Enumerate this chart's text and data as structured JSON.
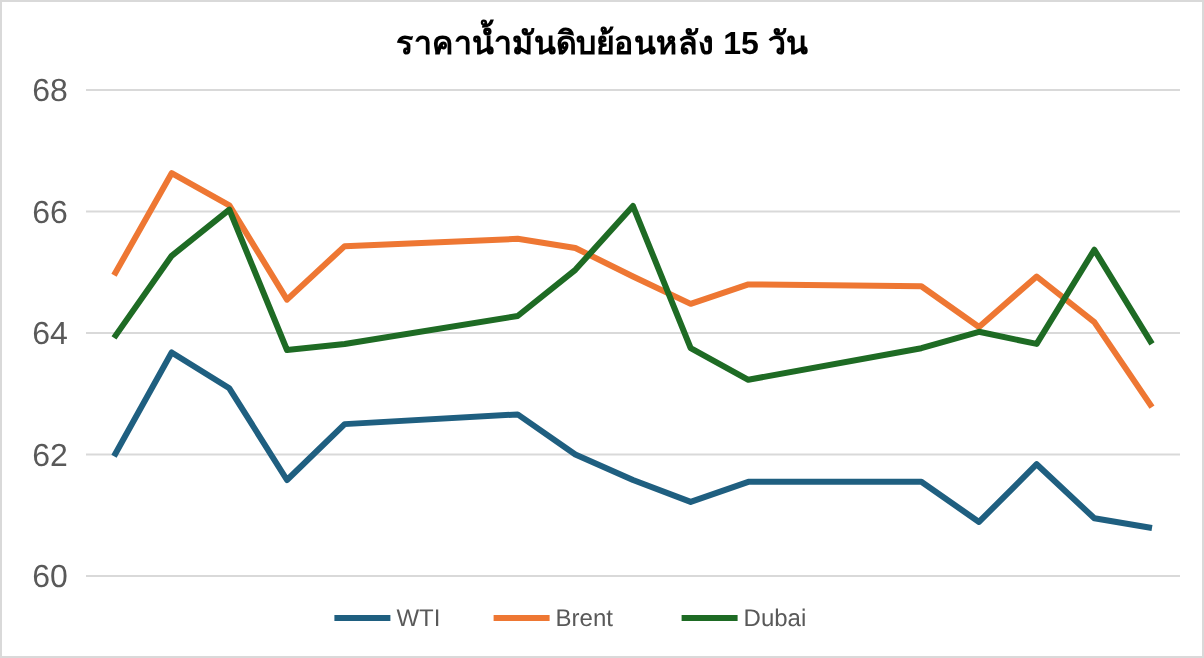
{
  "chart_data": {
    "type": "line",
    "title": "ราคาน้ำมันดิบย้อนหลัง 15 วัน",
    "categories": [
      null,
      null,
      null,
      null,
      null,
      null,
      null,
      null,
      null,
      null,
      null,
      null,
      null,
      null,
      null,
      null,
      null,
      null,
      null
    ],
    "series": [
      {
        "name": "WTI",
        "color": "#1f5f80",
        "values": [
          61.97,
          63.68,
          63.09,
          61.58,
          62.5,
          null,
          null,
          62.66,
          62.0,
          61.58,
          61.22,
          61.55,
          null,
          null,
          61.55,
          60.89,
          61.84,
          60.95,
          60.79
        ]
      },
      {
        "name": "Brent",
        "color": "#ee7733",
        "values": [
          64.95,
          66.63,
          66.1,
          64.55,
          65.43,
          null,
          null,
          65.55,
          65.4,
          64.93,
          64.48,
          64.8,
          null,
          null,
          64.77,
          64.1,
          64.93,
          64.18,
          62.78
        ]
      },
      {
        "name": "Dubai",
        "color": "#1e6b24",
        "values": [
          63.92,
          65.27,
          66.03,
          63.72,
          63.82,
          null,
          null,
          64.28,
          65.04,
          66.09,
          63.75,
          63.23,
          null,
          null,
          63.75,
          64.02,
          63.82,
          65.37,
          63.82
        ]
      }
    ],
    "ylim": [
      60,
      68
    ],
    "yticks": [
      60,
      62,
      64,
      66,
      68
    ],
    "grid": "y",
    "legend": "bottom",
    "marker": "none",
    "line_style": "solid"
  }
}
